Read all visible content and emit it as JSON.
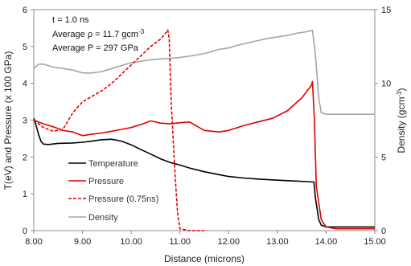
{
  "chart_data": {
    "type": "line",
    "annotations": {
      "time": "t = 1.0 ns",
      "density_prefix": "Average ",
      "density_symbol": "ρ",
      "density_value": " = 11.7 gcm",
      "density_exp": "-3",
      "pressure": "Average P = 297 GPa"
    },
    "xlabel": "Distance (microns)",
    "ylabel_left": "T(eV) and Pressure (x 100 GPa)",
    "ylabel_right_main": "Density (gcm",
    "ylabel_right_exp": "-3",
    "ylabel_right_end": ")",
    "xlim": [
      8.0,
      15.0
    ],
    "ylim_left": [
      0,
      6
    ],
    "ylim_right": [
      0,
      15
    ],
    "x_ticks": [
      "8.00",
      "9.00",
      "10.00",
      "11.00",
      "12.00",
      "13.00",
      "14.00",
      "15.00"
    ],
    "y_ticks_left": [
      "0",
      "1",
      "2",
      "3",
      "4",
      "5",
      "6"
    ],
    "y_ticks_right": [
      "0",
      "5",
      "10",
      "15"
    ],
    "grid": false,
    "legend_position": "lower-left",
    "series": [
      {
        "name": "Temperature",
        "axis": "left",
        "color": "#000000",
        "style": "solid",
        "x": [
          8.0,
          8.05,
          8.1,
          8.15,
          8.2,
          8.3,
          8.5,
          8.8,
          9.0,
          9.2,
          9.4,
          9.6,
          9.8,
          10.0,
          10.2,
          10.4,
          10.6,
          10.8,
          11.0,
          11.2,
          11.5,
          11.8,
          12.0,
          12.3,
          12.6,
          13.0,
          13.3,
          13.6,
          13.75,
          13.78,
          13.85,
          13.9,
          14.0,
          14.5,
          15.0
        ],
        "y": [
          3.05,
          2.85,
          2.6,
          2.42,
          2.35,
          2.34,
          2.37,
          2.38,
          2.4,
          2.43,
          2.47,
          2.48,
          2.43,
          2.33,
          2.2,
          2.08,
          1.95,
          1.85,
          1.78,
          1.7,
          1.6,
          1.52,
          1.47,
          1.43,
          1.4,
          1.37,
          1.35,
          1.33,
          1.32,
          0.9,
          0.3,
          0.15,
          0.1,
          0.1,
          0.1
        ]
      },
      {
        "name": "Pressure",
        "axis": "left",
        "color": "#e00000",
        "style": "solid",
        "x": [
          8.0,
          8.2,
          8.4,
          8.6,
          8.8,
          9.0,
          9.2,
          9.4,
          9.6,
          9.8,
          10.0,
          10.2,
          10.4,
          10.6,
          10.8,
          11.0,
          11.2,
          11.5,
          11.8,
          12.0,
          12.3,
          12.6,
          12.9,
          13.2,
          13.5,
          13.7,
          13.72,
          13.76,
          13.8,
          13.9,
          14.0,
          14.2,
          15.0
        ],
        "y": [
          3.0,
          2.9,
          2.82,
          2.72,
          2.68,
          2.58,
          2.62,
          2.65,
          2.7,
          2.75,
          2.8,
          2.88,
          2.98,
          2.92,
          2.9,
          2.93,
          2.95,
          2.72,
          2.68,
          2.72,
          2.85,
          2.95,
          3.05,
          3.25,
          3.6,
          3.95,
          4.05,
          3.0,
          1.2,
          0.3,
          0.1,
          0.05,
          0.05
        ]
      },
      {
        "name": "Pressure (0.75ns)",
        "axis": "left",
        "color": "#e00000",
        "style": "dashed",
        "x": [
          8.0,
          8.2,
          8.4,
          8.6,
          8.8,
          9.0,
          9.2,
          9.4,
          9.6,
          9.8,
          10.0,
          10.2,
          10.4,
          10.6,
          10.7,
          10.75,
          10.78,
          10.82,
          10.9,
          10.95,
          11.0,
          11.2,
          11.5
        ],
        "y": [
          3.0,
          2.8,
          2.7,
          2.75,
          3.2,
          3.5,
          3.65,
          3.8,
          4.0,
          4.25,
          4.5,
          4.75,
          5.0,
          5.2,
          5.35,
          5.45,
          5.2,
          3.5,
          1.5,
          0.5,
          0.05,
          0.0,
          0.0
        ]
      },
      {
        "name": "Density",
        "axis": "right",
        "color": "#a6a6a6",
        "style": "solid",
        "x": [
          8.0,
          8.1,
          8.2,
          8.4,
          8.6,
          8.8,
          9.0,
          9.2,
          9.4,
          9.6,
          9.8,
          10.0,
          10.2,
          10.4,
          10.6,
          10.8,
          11.0,
          11.2,
          11.4,
          11.6,
          11.8,
          12.0,
          12.2,
          12.4,
          12.6,
          12.8,
          13.0,
          13.2,
          13.4,
          13.6,
          13.72,
          13.78,
          13.85,
          13.9,
          14.0,
          14.5,
          15.0
        ],
        "y": [
          11.0,
          11.3,
          11.3,
          11.1,
          11.0,
          10.9,
          10.7,
          10.7,
          10.8,
          11.0,
          11.2,
          11.4,
          11.5,
          11.6,
          11.65,
          11.7,
          11.75,
          11.85,
          11.95,
          12.1,
          12.3,
          12.4,
          12.6,
          12.75,
          12.9,
          13.05,
          13.15,
          13.25,
          13.4,
          13.5,
          13.6,
          12.0,
          9.0,
          8.0,
          7.9,
          7.9,
          7.9
        ]
      }
    ]
  }
}
